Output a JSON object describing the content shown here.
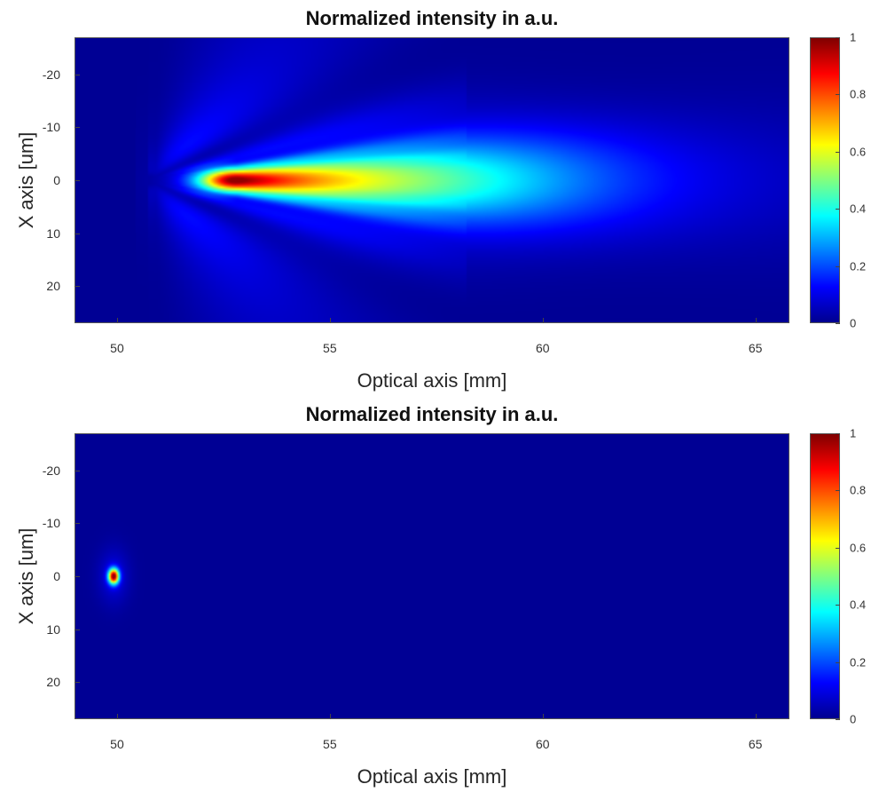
{
  "chart_data": [
    {
      "type": "heatmap",
      "title": "Normalized intensity in a.u.",
      "xlabel": "Optical axis [mm]",
      "ylabel": "X axis [um]",
      "xlim": [
        49,
        65.8
      ],
      "ylim": [
        -27,
        27
      ],
      "y_reversed": true,
      "xticks": [
        50,
        55,
        60,
        65
      ],
      "yticks": [
        -20,
        -10,
        0,
        10,
        20
      ],
      "colorbar": {
        "min": 0,
        "max": 1,
        "ticks": [
          0,
          0.2,
          0.4,
          0.6,
          0.8,
          1
        ],
        "colormap": "jet"
      },
      "description_values": {
        "peak_x_mm": 52.8,
        "peak_y_um": 0,
        "peak_value": 1
      },
      "feature": "elongated focal spot"
    },
    {
      "type": "heatmap",
      "title": "Normalized intensity in a.u.",
      "xlabel": "Optical axis [mm]",
      "ylabel": "X axis [um]",
      "xlim": [
        49,
        65.8
      ],
      "ylim": [
        -27,
        27
      ],
      "y_reversed": true,
      "xticks": [
        50,
        55,
        60,
        65
      ],
      "yticks": [
        -20,
        -10,
        0,
        10,
        20
      ],
      "colorbar": {
        "min": 0,
        "max": 1,
        "ticks": [
          0,
          0.2,
          0.4,
          0.6,
          0.8,
          1
        ],
        "colormap": "jet"
      },
      "description_values": {
        "peak_x_mm": 49.9,
        "peak_y_um": 0,
        "peak_value": 1
      },
      "feature": "tight point focus"
    }
  ]
}
